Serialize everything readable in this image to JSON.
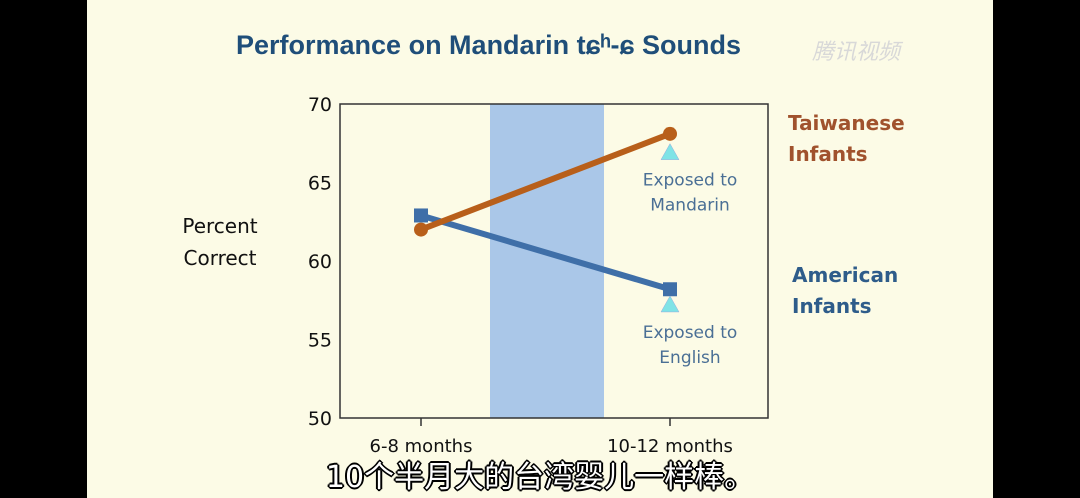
{
  "title": "Performance on Mandarin tɕʰ-ɕ Sounds",
  "watermark": "腾讯视频",
  "subtitle": "10个半月大的台湾婴儿一样棒。",
  "colors": {
    "taiwanese": "#b85f1a",
    "american": "#3f6fa8",
    "triangle": "#7fe3e6",
    "band": "#aac7e8",
    "background": "#fcfbe6"
  },
  "chart_data": {
    "type": "line",
    "title": "Performance on Mandarin tɕʰ-ɕ Sounds",
    "ylabel": "Percent Correct",
    "xlabel": "",
    "categories": [
      "6-8 months",
      "10-12 months"
    ],
    "ylim": [
      50,
      70
    ],
    "yticks": [
      50,
      55,
      60,
      65,
      70
    ],
    "grid": false,
    "shaded_band": "between categories",
    "series": [
      {
        "name": "Taiwanese Infants",
        "values": [
          62.0,
          68.1
        ],
        "marker": "circle",
        "color": "#b85f1a"
      },
      {
        "name": "American Infants",
        "values": [
          62.9,
          58.2
        ],
        "marker": "square",
        "color": "#3f6fa8"
      }
    ],
    "annotations": [
      {
        "text": "Exposed to Mandarin",
        "x": "10-12 months",
        "y": 66.9,
        "marker": "triangle"
      },
      {
        "text": "Exposed to English",
        "x": "10-12 months",
        "y": 57.2,
        "marker": "triangle"
      }
    ],
    "legend_labels": [
      {
        "line1": "Taiwanese",
        "line2": "Infants"
      },
      {
        "line1": "American",
        "line2": "Infants"
      }
    ]
  }
}
